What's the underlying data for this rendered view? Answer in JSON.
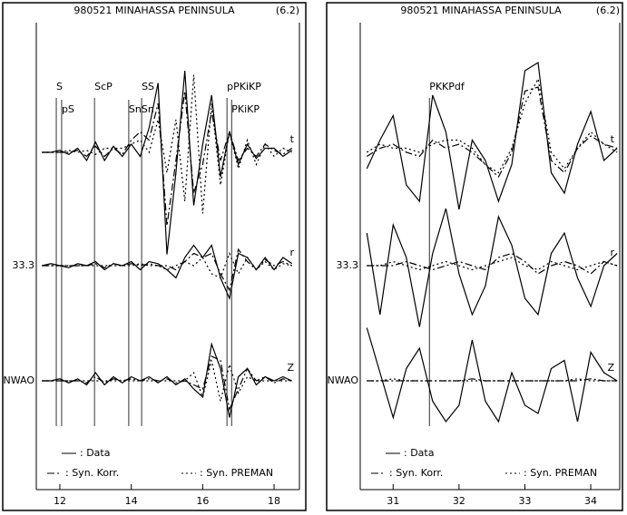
{
  "chart_data": [
    {
      "type": "line",
      "title": "980521 MINAHASSA PENINSULA",
      "magnitude": "(6.2)",
      "xlim": [
        11.34,
        18.71
      ],
      "xticks": [
        12,
        14,
        16,
        18
      ],
      "x": [
        11.5,
        11.75,
        12,
        12.25,
        12.5,
        12.75,
        13,
        13.25,
        13.5,
        13.75,
        14,
        14.25,
        14.5,
        14.75,
        15,
        15.25,
        15.5,
        15.75,
        16,
        16.25,
        16.5,
        16.75,
        17,
        17.25,
        17.5,
        17.75,
        18,
        18.25,
        18.5
      ],
      "phases": [
        {
          "label": "S",
          "x": 11.9
        },
        {
          "label": "pS",
          "x": 12.05
        },
        {
          "label": "ScP",
          "x": 12.97
        },
        {
          "label": "SnSn",
          "x": 13.93
        },
        {
          "label": "SS",
          "x": 14.29
        },
        {
          "label": "PKiKP",
          "x": 16.81
        },
        {
          "label": "pPKiKP",
          "x": 16.68
        }
      ],
      "components": [
        {
          "label": "t",
          "series": [
            {
              "name": ": Data",
              "linestyle": "solid",
              "color": "#000",
              "values": [
                0,
                0,
                0.05,
                -0.05,
                0.1,
                -0.2,
                0.25,
                -0.2,
                0.15,
                -0.1,
                0.2,
                -0.1,
                0.6,
                1.7,
                -2.5,
                -0.5,
                2.0,
                -1.3,
                0.2,
                1.4,
                -0.6,
                0.5,
                -0.3,
                0.2,
                -0.15,
                0.1,
                0.1,
                -0.1,
                0.05
              ]
            },
            {
              "name": ": Syn. Korr.",
              "linestyle": "dashdot",
              "color": "#000",
              "values": [
                0,
                0,
                0,
                0,
                0.05,
                -0.1,
                0.15,
                -0.1,
                0.1,
                -0.05,
                0.3,
                0.5,
                0.3,
                1.2,
                -1.8,
                -0.2,
                1.5,
                -1.0,
                -0.3,
                1.0,
                -0.2,
                0.5,
                -0.2,
                0.1,
                -0.1,
                0.2,
                0.05,
                -0.05,
                0.1
              ]
            },
            {
              "name": ": Syn. PREMAN",
              "linestyle": "dotted",
              "color": "#000",
              "values": [
                0,
                0,
                0,
                0.05,
                0,
                0.05,
                -0.05,
                0.1,
                0.1,
                0.1,
                0.2,
                0.3,
                0,
                0.8,
                -0.5,
                0.8,
                -1.2,
                1.9,
                -1.5,
                1.2,
                -0.8,
                0.5,
                -0.4,
                0.3,
                -0.3,
                0.2,
                -0.1,
                0.1,
                0
              ]
            }
          ]
        },
        {
          "label": "r",
          "station": "33.3",
          "series": [
            {
              "name": ": Data",
              "linestyle": "solid",
              "color": "#000",
              "values": [
                0,
                0.05,
                0,
                -0.05,
                0.05,
                0,
                0.1,
                -0.1,
                0.05,
                0,
                0.1,
                -0.1,
                0.1,
                0.05,
                -0.1,
                -0.3,
                0.2,
                0.5,
                0.2,
                0.5,
                -0.3,
                -0.8,
                0.3,
                0.2,
                -0.1,
                0.2,
                -0.1,
                0.2,
                0.05
              ]
            },
            {
              "name": ": Syn. Korr.",
              "linestyle": "dashdot",
              "color": "#000",
              "values": [
                0,
                0,
                0,
                0,
                0,
                0,
                0.05,
                -0.05,
                0.05,
                0,
                0.05,
                0,
                0.05,
                0,
                0,
                -0.1,
                0.1,
                0.3,
                0.2,
                0.3,
                -0.2,
                -0.6,
                0.4,
                0.1,
                -0.1,
                0.15,
                0,
                0.1,
                0
              ]
            },
            {
              "name": ": Syn. PREMAN",
              "linestyle": "dotted",
              "color": "#000",
              "values": [
                0,
                0,
                0,
                0,
                0,
                0,
                0,
                0,
                0,
                0,
                0,
                0.05,
                0,
                0,
                -0.1,
                0,
                0.1,
                0,
                0.2,
                -0.2,
                -0.3,
                0.3,
                -0.2,
                0.2,
                -0.1,
                0.1,
                -0.1,
                0.05,
                0
              ]
            }
          ]
        },
        {
          "label": "Z",
          "station": "NWAO",
          "series": [
            {
              "name": ": Data",
              "linestyle": "solid",
              "color": "#000",
              "values": [
                0,
                0,
                0.05,
                -0.05,
                0.05,
                -0.1,
                0.2,
                -0.1,
                0.1,
                -0.05,
                0.1,
                0,
                0.1,
                -0.05,
                0.1,
                -0.1,
                0.05,
                -0.2,
                -0.4,
                0.9,
                0.3,
                -0.9,
                0.1,
                0.3,
                -0.1,
                0.1,
                0,
                0.1,
                0
              ]
            },
            {
              "name": ": Syn. Korr.",
              "linestyle": "dashdot",
              "color": "#000",
              "values": [
                0,
                0,
                0,
                0,
                0,
                -0.05,
                0.1,
                -0.05,
                0.05,
                0,
                0.05,
                0,
                0.05,
                0,
                0.05,
                -0.05,
                0,
                -0.1,
                -0.2,
                0.6,
                0.5,
                -0.7,
                -0.2,
                0.3,
                0,
                0.1,
                -0.05,
                0.05,
                0
              ]
            },
            {
              "name": ": Syn. PREMAN",
              "linestyle": "dotted",
              "color": "#000",
              "values": [
                0,
                0,
                0,
                0,
                0,
                0,
                0,
                0,
                0,
                0,
                0,
                0,
                0,
                0,
                0,
                0,
                0,
                0.2,
                -0.4,
                0.5,
                -0.5,
                0.4,
                -0.3,
                0.1,
                0,
                0,
                0,
                0,
                0
              ]
            }
          ]
        }
      ]
    },
    {
      "type": "line",
      "title": "980521 MINAHASSA PENINSULA",
      "magnitude": "(6.2)",
      "xlim": [
        30.5,
        34.44
      ],
      "xticks": [
        31,
        32,
        33,
        34
      ],
      "x": [
        30.6,
        30.8,
        31.0,
        31.2,
        31.4,
        31.6,
        31.8,
        32.0,
        32.2,
        32.4,
        32.6,
        32.8,
        33.0,
        33.2,
        33.4,
        33.6,
        33.8,
        34.0,
        34.2,
        34.4
      ],
      "phases": [
        {
          "label": "PKKPdf",
          "x": 31.55
        }
      ],
      "components": [
        {
          "label": "t",
          "series": [
            {
              "name": ": Data",
              "linestyle": "solid",
              "color": "#000",
              "values": [
                -0.4,
                0.3,
                0.9,
                -0.8,
                -1.2,
                1.4,
                0.5,
                -1.4,
                0.3,
                -0.2,
                -1.2,
                -0.3,
                2.0,
                2.2,
                -0.5,
                -1.0,
                0.2,
                1.0,
                -0.2,
                0.1
              ]
            },
            {
              "name": ": Syn. Korr.",
              "linestyle": "dashdot",
              "color": "#000",
              "values": [
                -0.1,
                0.1,
                0.2,
                0,
                -0.1,
                0.3,
                0.1,
                0.2,
                0,
                -0.3,
                -0.6,
                0,
                1.5,
                1.6,
                -0.2,
                -0.5,
                0.1,
                0.4,
                0.2,
                0.1
              ]
            },
            {
              "name": ": Syn. PREMAN",
              "linestyle": "dotted",
              "color": "#000",
              "values": [
                0,
                0.2,
                0.1,
                0.1,
                0,
                0.2,
                0.3,
                0.3,
                0.1,
                -0.3,
                -0.5,
                0.1,
                1.2,
                1.8,
                0,
                -0.4,
                0.1,
                0.5,
                0.2,
                0
              ]
            }
          ]
        },
        {
          "label": "r",
          "station": "33.3",
          "series": [
            {
              "name": ": Data",
              "linestyle": "solid",
              "color": "#000",
              "values": [
                0.8,
                -1.2,
                1.0,
                0.2,
                -1.5,
                0.3,
                1.4,
                -0.2,
                -1.2,
                -0.5,
                1.2,
                0.5,
                -0.8,
                -1.2,
                0.3,
                0.8,
                -0.3,
                -1.0,
                0,
                0.3
              ]
            },
            {
              "name": ": Syn. Korr.",
              "linestyle": "dashdot",
              "color": "#000",
              "values": [
                0,
                0,
                0,
                0.1,
                0,
                -0.1,
                0,
                0.1,
                0,
                -0.1,
                0.2,
                0.3,
                0.1,
                -0.2,
                0,
                0.1,
                0,
                -0.2,
                0.1,
                0
              ]
            },
            {
              "name": ": Syn. PREMAN",
              "linestyle": "dotted",
              "color": "#000",
              "values": [
                0,
                0,
                0.1,
                0,
                -0.1,
                0,
                0.1,
                0,
                -0.1,
                0,
                0.1,
                0.2,
                0,
                -0.1,
                0.1,
                0,
                -0.1,
                0,
                0.1,
                0
              ]
            }
          ]
        },
        {
          "label": "Z",
          "station": "NWAO",
          "series": [
            {
              "name": ": Data",
              "linestyle": "solid",
              "color": "#000",
              "values": [
                1.3,
                0.2,
                -0.9,
                0.3,
                0.8,
                -0.5,
                -1.0,
                -0.6,
                1.0,
                -0.5,
                -1.0,
                0.2,
                -0.6,
                -0.8,
                0.3,
                0.5,
                -1.0,
                0.7,
                0.2,
                0
              ]
            },
            {
              "name": ": Syn. Korr.",
              "linestyle": "dashdot",
              "color": "#000",
              "values": [
                0,
                0,
                0,
                0,
                0,
                0,
                0,
                0,
                0.05,
                0,
                0,
                0,
                0,
                0,
                0,
                0,
                0,
                0.05,
                0,
                0
              ]
            },
            {
              "name": ": Syn. PREMAN",
              "linestyle": "dotted",
              "color": "#000",
              "values": [
                0,
                0,
                0.05,
                0,
                0,
                0,
                0,
                0,
                0,
                0,
                0,
                0,
                0,
                0,
                0,
                0,
                0.05,
                0,
                0,
                0
              ]
            }
          ]
        }
      ]
    }
  ]
}
